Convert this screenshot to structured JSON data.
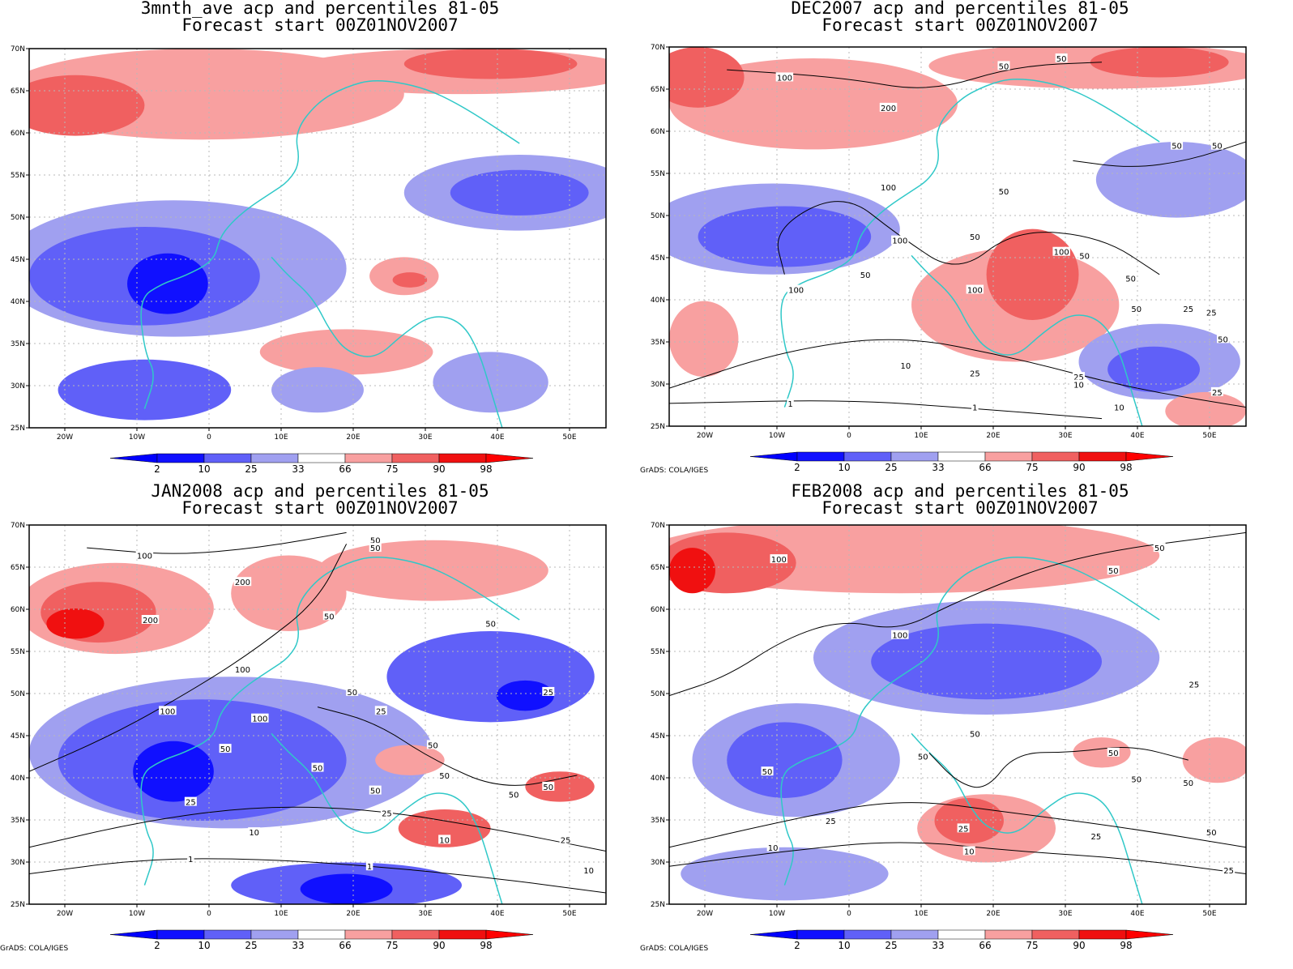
{
  "colors": {
    "blue_dark": "#1010ff",
    "blue_mid": "#6060f8",
    "blue_light": "#a0a0f0",
    "red_light": "#f8a0a0",
    "red_mid": "#f06060",
    "red_dark": "#f01010",
    "coast": "#30c8c8",
    "contour": "#000000"
  },
  "colorbar_labels": [
    "2",
    "10",
    "25",
    "33",
    "66",
    "75",
    "90",
    "98"
  ],
  "lat_labels": [
    "70N",
    "65N",
    "60N",
    "55N",
    "50N",
    "45N",
    "40N",
    "35N",
    "30N",
    "25N"
  ],
  "lon_labels": [
    "20W",
    "10W",
    "0",
    "10E",
    "20E",
    "30E",
    "40E",
    "50E"
  ],
  "credit": "GrADS: COLA/IGES",
  "panels": [
    {
      "title1": "3mnth_ave acp and percentiles 81-05",
      "title2": "Forecast start 00Z01NOV2007",
      "contour_labels": [],
      "show_credit": false
    },
    {
      "title1": "DEC2007 acp and percentiles 81-05",
      "title2": "Forecast start 00Z01NOV2007",
      "contour_labels": [
        "100",
        "50",
        "50",
        "200",
        "50",
        "50",
        "100",
        "50",
        "100",
        "50",
        "100",
        "50",
        "100",
        "50",
        "100",
        "50",
        "25",
        "50",
        "25",
        "10",
        "25",
        "50",
        "25",
        "10",
        "1",
        "1",
        "10",
        "25"
      ],
      "show_credit": true
    },
    {
      "title1": "JAN2008 acp and percentiles 81-05",
      "title2": "Forecast start 00Z01NOV2007",
      "contour_labels": [
        "100",
        "50",
        "50",
        "200",
        "50",
        "200",
        "50",
        "100",
        "100",
        "100",
        "50",
        "25",
        "25",
        "50",
        "50",
        "50",
        "50",
        "50",
        "50",
        "50",
        "25",
        "25",
        "10",
        "10",
        "1",
        "1",
        "25",
        "10"
      ],
      "show_credit": true
    },
    {
      "title1": "FEB2008 acp and percentiles 81-05",
      "title2": "Forecast start 00Z01NOV2007",
      "contour_labels": [
        "100",
        "50",
        "50",
        "100",
        "50",
        "50",
        "50",
        "50",
        "50",
        "50",
        "25",
        "25",
        "10",
        "25",
        "10",
        "25",
        "50",
        "25"
      ],
      "show_credit": true
    }
  ]
}
